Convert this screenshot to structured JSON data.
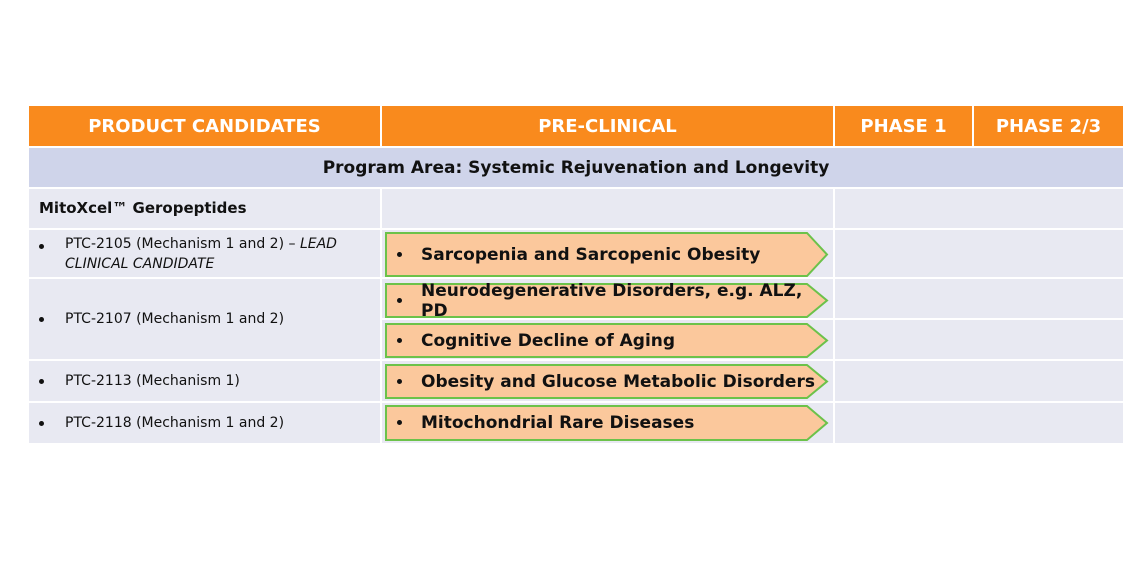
{
  "table": {
    "headers": [
      "PRODUCT CANDIDATES",
      "PRE-CLINICAL",
      "PHASE 1",
      "PHASE 2/3"
    ],
    "program_area": "Program Area: Systemic Rejuvenation and Longevity",
    "group": "MitoXcel™ Geropeptides",
    "rows": [
      {
        "candidate": "PTC-2105 (Mechanism 1 and 2) – ",
        "candidate_note": "LEAD CLINICAL CANDIDATE",
        "indications": [
          "Sarcopenia and Sarcopenic Obesity"
        ]
      },
      {
        "candidate": "PTC-2107 (Mechanism 1 and 2)",
        "indications": [
          "Neurodegenerative Disorders, e.g. ALZ, PD",
          "Cognitive Decline of Aging"
        ]
      },
      {
        "candidate": "PTC-2113 (Mechanism 1)",
        "indications": [
          "Obesity and Glucose Metabolic Disorders"
        ]
      },
      {
        "candidate": "PTC-2118 (Mechanism 1 and 2)",
        "indications": [
          "Mitochondrial Rare Diseases"
        ]
      }
    ]
  }
}
